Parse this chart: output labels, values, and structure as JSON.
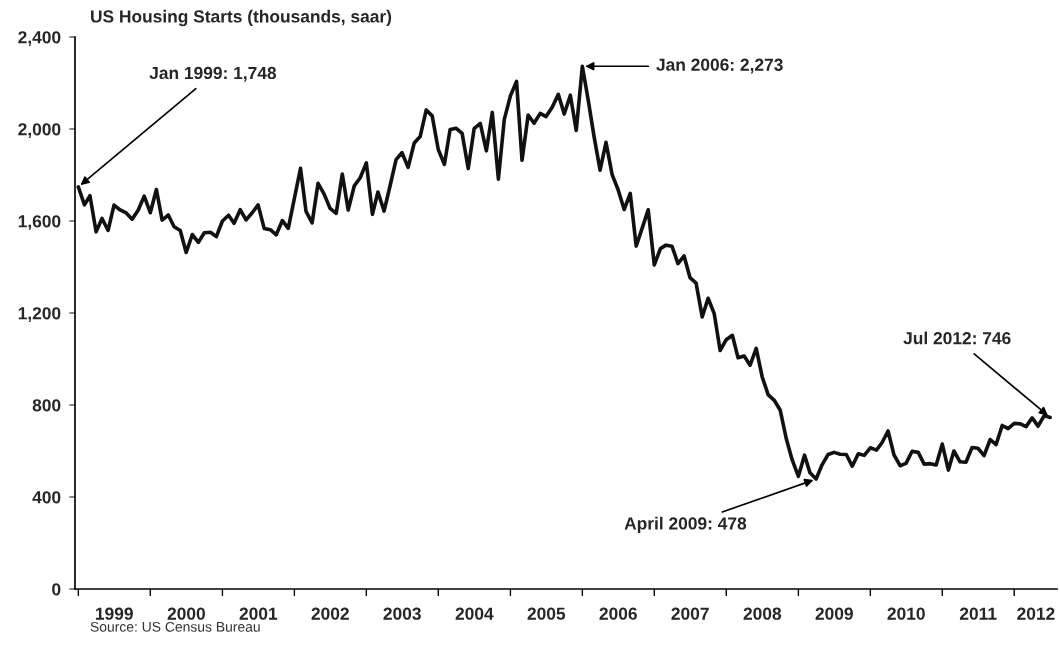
{
  "chart_data": {
    "type": "line",
    "title": "US Housing Starts (thousands, saar)",
    "annotations": [
      {
        "text": "Jan 1999: 1,748",
        "x": "1999-01",
        "y": 1748
      },
      {
        "text": "Jan 2006: 2,273",
        "x": "2006-01",
        "y": 2273
      },
      {
        "text": "April 2009: 478",
        "x": "2009-04",
        "y": 478
      },
      {
        "text": "Jul 2012: 746",
        "x": "2012-07",
        "y": 746
      },
      "Source: US Census Bureau"
    ],
    "x": [
      "1999-01",
      "1999-02",
      "1999-03",
      "1999-04",
      "1999-05",
      "1999-06",
      "1999-07",
      "1999-08",
      "1999-09",
      "1999-10",
      "1999-11",
      "1999-12",
      "2000-01",
      "2000-02",
      "2000-03",
      "2000-04",
      "2000-05",
      "2000-06",
      "2000-07",
      "2000-08",
      "2000-09",
      "2000-10",
      "2000-11",
      "2000-12",
      "2001-01",
      "2001-02",
      "2001-03",
      "2001-04",
      "2001-05",
      "2001-06",
      "2001-07",
      "2001-08",
      "2001-09",
      "2001-10",
      "2001-11",
      "2001-12",
      "2002-01",
      "2002-02",
      "2002-03",
      "2002-04",
      "2002-05",
      "2002-06",
      "2002-07",
      "2002-08",
      "2002-09",
      "2002-10",
      "2002-11",
      "2002-12",
      "2003-01",
      "2003-02",
      "2003-03",
      "2003-04",
      "2003-05",
      "2003-06",
      "2003-07",
      "2003-08",
      "2003-09",
      "2003-10",
      "2003-11",
      "2003-12",
      "2004-01",
      "2004-02",
      "2004-03",
      "2004-04",
      "2004-05",
      "2004-06",
      "2004-07",
      "2004-08",
      "2004-09",
      "2004-10",
      "2004-11",
      "2004-12",
      "2005-01",
      "2005-02",
      "2005-03",
      "2005-04",
      "2005-05",
      "2005-06",
      "2005-07",
      "2005-08",
      "2005-09",
      "2005-10",
      "2005-11",
      "2005-12",
      "2006-01",
      "2006-02",
      "2006-03",
      "2006-04",
      "2006-05",
      "2006-06",
      "2006-07",
      "2006-08",
      "2006-09",
      "2006-10",
      "2006-11",
      "2006-12",
      "2007-01",
      "2007-02",
      "2007-03",
      "2007-04",
      "2007-05",
      "2007-06",
      "2007-07",
      "2007-08",
      "2007-09",
      "2007-10",
      "2007-11",
      "2007-12",
      "2008-01",
      "2008-02",
      "2008-03",
      "2008-04",
      "2008-05",
      "2008-06",
      "2008-07",
      "2008-08",
      "2008-09",
      "2008-10",
      "2008-11",
      "2008-12",
      "2009-01",
      "2009-02",
      "2009-03",
      "2009-04",
      "2009-05",
      "2009-06",
      "2009-07",
      "2009-08",
      "2009-09",
      "2009-10",
      "2009-11",
      "2009-12",
      "2010-01",
      "2010-02",
      "2010-03",
      "2010-04",
      "2010-05",
      "2010-06",
      "2010-07",
      "2010-08",
      "2010-09",
      "2010-10",
      "2010-11",
      "2010-12",
      "2011-01",
      "2011-02",
      "2011-03",
      "2011-04",
      "2011-05",
      "2011-06",
      "2011-07",
      "2011-08",
      "2011-09",
      "2011-10",
      "2011-11",
      "2011-12",
      "2012-01",
      "2012-02",
      "2012-03",
      "2012-04",
      "2012-05",
      "2012-06",
      "2012-07"
    ],
    "series": [
      {
        "color": "#111111",
        "values": [
          1748,
          1670,
          1710,
          1553,
          1611,
          1559,
          1669,
          1648,
          1635,
          1608,
          1648,
          1708,
          1636,
          1737,
          1604,
          1626,
          1575,
          1559,
          1463,
          1541,
          1507,
          1549,
          1551,
          1532,
          1600,
          1625,
          1590,
          1649,
          1605,
          1636,
          1670,
          1567,
          1562,
          1540,
          1602,
          1568,
          1698,
          1829,
          1642,
          1592,
          1764,
          1717,
          1655,
          1633,
          1804,
          1648,
          1753,
          1788,
          1853,
          1629,
          1726,
          1643,
          1751,
          1867,
          1897,
          1833,
          1939,
          1967,
          2083,
          2057,
          1911,
          1846,
          1998,
          2003,
          1981,
          1828,
          2002,
          2024,
          1905,
          2072,
          1782,
          2042,
          2144,
          2207,
          1864,
          2061,
          2025,
          2068,
          2054,
          2095,
          2151,
          2065,
          2147,
          1994,
          2273,
          2119,
          1969,
          1821,
          1942,
          1802,
          1737,
          1650,
          1720,
          1491,
          1570,
          1649,
          1409,
          1480,
          1495,
          1490,
          1415,
          1448,
          1354,
          1330,
          1183,
          1264,
          1197,
          1037,
          1084,
          1103,
          1005,
          1013,
          973,
          1046,
          923,
          844,
          820,
          777,
          652,
          560,
          490,
          582,
          505,
          478,
          540,
          585,
          594,
          586,
          585,
          534,
          588,
          581,
          614,
          604,
          636,
          687,
          583,
          536,
          546,
          599,
          594,
          543,
          545,
          539,
          630,
          517,
          600,
          553,
          551,
          615,
          612,
          580,
          650,
          628,
          711,
          697,
          720,
          718,
          706,
          744,
          708,
          754,
          746
        ]
      }
    ],
    "xlim": [
      "1998-12-15",
      "2012-08-05"
    ],
    "xticks": [
      {
        "value": "1999-01-01",
        "label": null
      },
      {
        "value": "1999-07-02",
        "label": "1999"
      },
      {
        "value": "2000-01-01",
        "label": null
      },
      {
        "value": "2000-07-02",
        "label": "2000"
      },
      {
        "value": "2001-01-01",
        "label": null
      },
      {
        "value": "2001-07-02",
        "label": "2001"
      },
      {
        "value": "2002-01-01",
        "label": null
      },
      {
        "value": "2002-07-02",
        "label": "2002"
      },
      {
        "value": "2003-01-01",
        "label": null
      },
      {
        "value": "2003-07-02",
        "label": "2003"
      },
      {
        "value": "2004-01-01",
        "label": null
      },
      {
        "value": "2004-07-02",
        "label": "2004"
      },
      {
        "value": "2005-01-01",
        "label": null
      },
      {
        "value": "2005-07-02",
        "label": "2005"
      },
      {
        "value": "2006-01-01",
        "label": null
      },
      {
        "value": "2006-07-02",
        "label": "2006"
      },
      {
        "value": "2007-01-01",
        "label": null
      },
      {
        "value": "2007-07-02",
        "label": "2007"
      },
      {
        "value": "2008-01-01",
        "label": null
      },
      {
        "value": "2008-07-02",
        "label": "2008"
      },
      {
        "value": "2009-01-01",
        "label": null
      },
      {
        "value": "2009-07-02",
        "label": "2009"
      },
      {
        "value": "2010-01-01",
        "label": null
      },
      {
        "value": "2010-07-02",
        "label": "2010"
      },
      {
        "value": "2011-01-01",
        "label": null
      },
      {
        "value": "2011-07-02",
        "label": "2011"
      },
      {
        "value": "2012-01-01",
        "label": null
      },
      {
        "value": "2012-04-20",
        "label": "2012"
      }
    ],
    "ylim": [
      0,
      2400
    ],
    "yticks": [
      0,
      {
        "value": 400,
        "label": "400"
      },
      {
        "value": 800,
        "label": "800"
      },
      {
        "value": 1200,
        "label": "1,200"
      },
      {
        "value": 1600,
        "label": "1,600"
      },
      {
        "value": 2000,
        "label": "2,000"
      },
      {
        "value": 2400,
        "label": "2,400"
      }
    ],
    "grid": false,
    "legend": false,
    "marker": "none",
    "line_style": "solid"
  }
}
